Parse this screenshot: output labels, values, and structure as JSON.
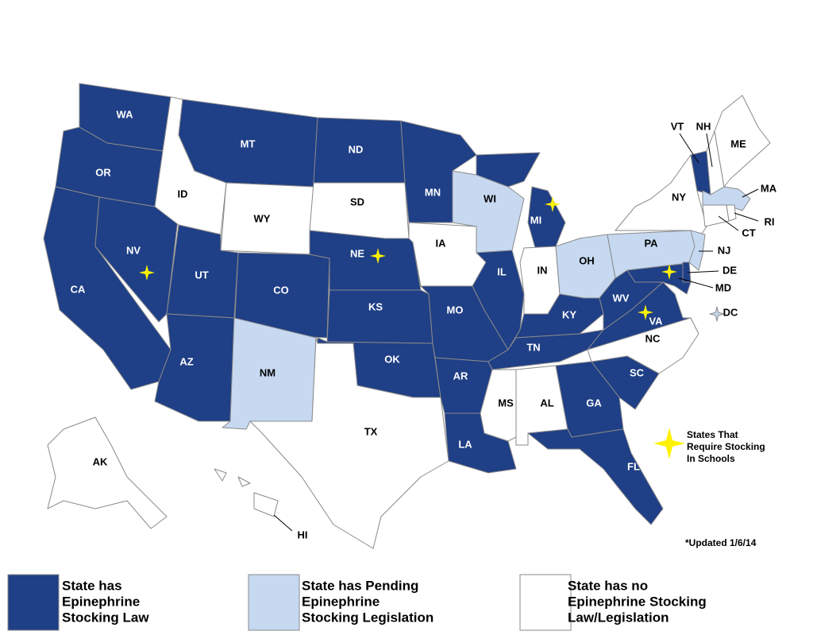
{
  "legend": [
    {
      "label": [
        "State has",
        "Epinephrine",
        "Stocking Law"
      ],
      "color": "#1f3f86"
    },
    {
      "label": [
        "State has Pending",
        "Epinephrine",
        "Stocking Legislation"
      ],
      "color": "#c6d9f1"
    },
    {
      "label": [
        "State has no",
        "Epinephrine Stocking",
        "Law/Legislation"
      ],
      "color": "#ffffff"
    }
  ],
  "star_legend": {
    "label": [
      "States That",
      "Require Stocking",
      "In Schools"
    ],
    "color": "#fff200"
  },
  "note": "*Updated 1/6/14",
  "states": [
    {
      "label": "WA",
      "category": 0
    },
    {
      "label": "OR",
      "category": 0
    },
    {
      "label": "CA",
      "category": 0
    },
    {
      "label": "NV",
      "category": 0,
      "requires_stocking": true
    },
    {
      "label": "ID",
      "category": 2
    },
    {
      "label": "MT",
      "category": 0
    },
    {
      "label": "WY",
      "category": 2
    },
    {
      "label": "UT",
      "category": 0
    },
    {
      "label": "CO",
      "category": 0
    },
    {
      "label": "AZ",
      "category": 0
    },
    {
      "label": "NM",
      "category": 1
    },
    {
      "label": "ND",
      "category": 0
    },
    {
      "label": "SD",
      "category": 2
    },
    {
      "label": "NE",
      "category": 0,
      "requires_stocking": true
    },
    {
      "label": "KS",
      "category": 0
    },
    {
      "label": "OK",
      "category": 0
    },
    {
      "label": "TX",
      "category": 2
    },
    {
      "label": "MN",
      "category": 0
    },
    {
      "label": "IA",
      "category": 2
    },
    {
      "label": "MO",
      "category": 0
    },
    {
      "label": "AR",
      "category": 0
    },
    {
      "label": "LA",
      "category": 0
    },
    {
      "label": "WI",
      "category": 1
    },
    {
      "label": "IL",
      "category": 0
    },
    {
      "label": "MI",
      "category": 0,
      "requires_stocking": true
    },
    {
      "label": "IN",
      "category": 2
    },
    {
      "label": "OH",
      "category": 1
    },
    {
      "label": "KY",
      "category": 0
    },
    {
      "label": "TN",
      "category": 0
    },
    {
      "label": "MS",
      "category": 2
    },
    {
      "label": "AL",
      "category": 2
    },
    {
      "label": "GA",
      "category": 0
    },
    {
      "label": "FL",
      "category": 0
    },
    {
      "label": "SC",
      "category": 0
    },
    {
      "label": "NC",
      "category": 2
    },
    {
      "label": "VA",
      "category": 0,
      "requires_stocking": true
    },
    {
      "label": "WV",
      "category": 0
    },
    {
      "label": "PA",
      "category": 1
    },
    {
      "label": "NY",
      "category": 2
    },
    {
      "label": "NJ",
      "category": 1
    },
    {
      "label": "DE",
      "category": 0
    },
    {
      "label": "MD",
      "category": 0,
      "requires_stocking": true
    },
    {
      "label": "DC",
      "category": 1
    },
    {
      "label": "VT",
      "category": 0
    },
    {
      "label": "NH",
      "category": 2
    },
    {
      "label": "ME",
      "category": 2
    },
    {
      "label": "MA",
      "category": 1
    },
    {
      "label": "RI",
      "category": 2
    },
    {
      "label": "CT",
      "category": 2
    },
    {
      "label": "AK",
      "category": 2
    },
    {
      "label": "HI",
      "category": 2
    }
  ]
}
